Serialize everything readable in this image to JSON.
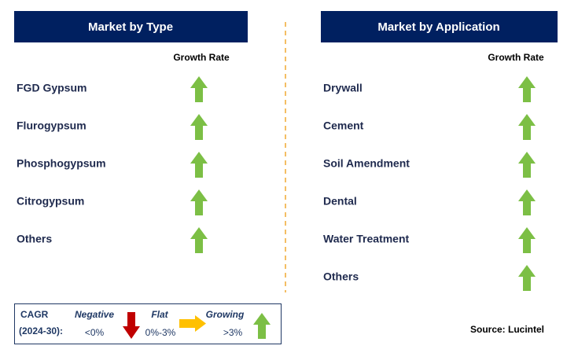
{
  "left": {
    "title": "Market by Type",
    "column_header": "Growth Rate",
    "items": [
      "FGD Gypsum",
      "Flurogypsum",
      "Phosphogypsum",
      "Citrogypsum",
      "Others"
    ]
  },
  "right": {
    "title": "Market by Application",
    "column_header": "Growth Rate",
    "items": [
      "Drywall",
      "Cement",
      "Soil Amendment",
      "Dental",
      "Water Treatment",
      "Others"
    ]
  },
  "legend": {
    "label": "CAGR",
    "period": "(2024-30):",
    "negative": {
      "name": "Negative",
      "range": "<0%"
    },
    "flat": {
      "name": "Flat",
      "range": "0%-3%"
    },
    "growing": {
      "name": "Growing",
      "range": ">3%"
    }
  },
  "source": "Source: Lucintel"
}
